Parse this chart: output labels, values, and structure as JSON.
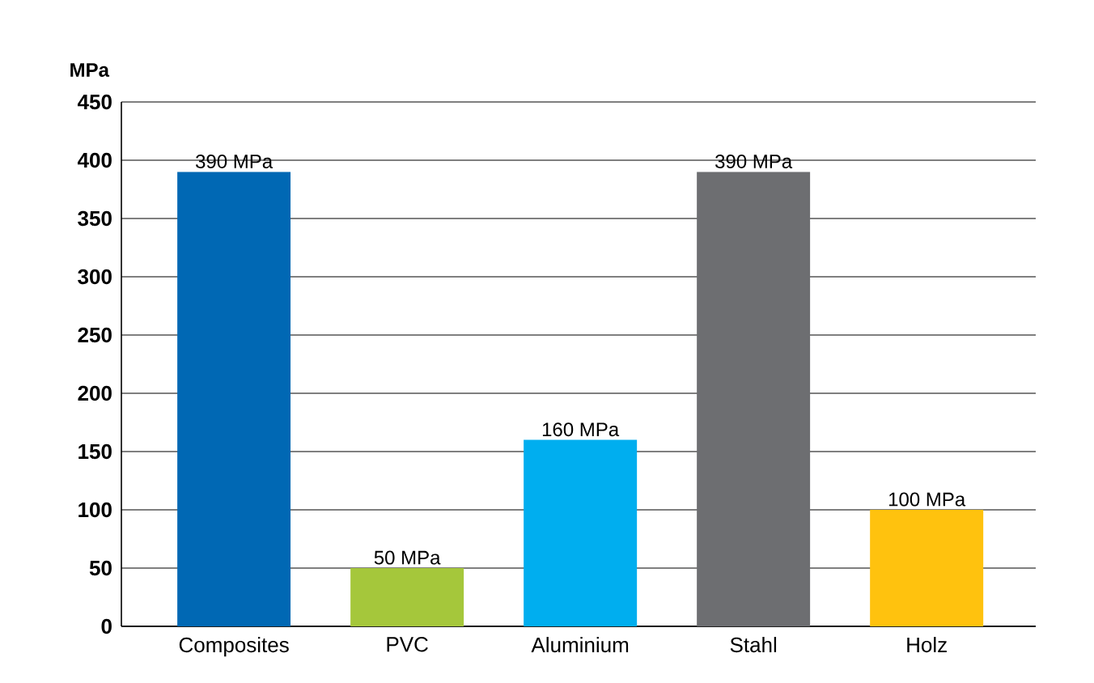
{
  "chart_data": {
    "type": "bar",
    "ylabel": "MPa",
    "categories": [
      "Composites",
      "PVC",
      "Aluminium",
      "Stahl",
      "Holz"
    ],
    "values": [
      390,
      50,
      160,
      390,
      100
    ],
    "colors": [
      "#0068b4",
      "#a5c73b",
      "#00aeef",
      "#6d6e71",
      "#ffc20e"
    ],
    "value_labels": [
      "390 MPa",
      "50 MPa",
      "160 MPa",
      "390 MPa",
      "100 MPa"
    ],
    "ylim": [
      0,
      450
    ],
    "yticks": [
      0,
      50,
      100,
      150,
      200,
      250,
      300,
      350,
      400,
      450
    ],
    "grid": "y"
  }
}
